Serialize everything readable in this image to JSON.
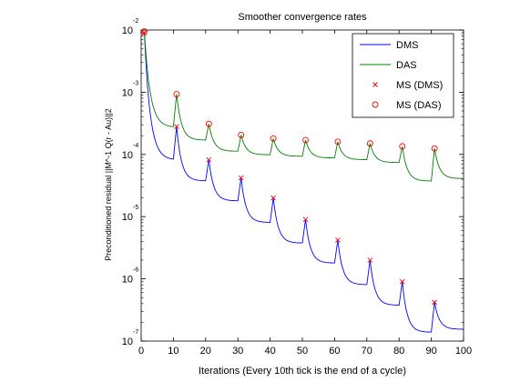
{
  "chart_data": {
    "type": "line",
    "title": "Smoother convergence rates",
    "xlabel": "Iterations (Every 10th tick is the end of a cycle)",
    "ylabel": "Preconditioned residual ||M^-1 Q(r - Au)||2",
    "xlim": [
      0,
      100
    ],
    "ylim": [
      1e-07,
      0.01
    ],
    "yscale": "log",
    "x_ticks": [
      0,
      10,
      20,
      30,
      40,
      50,
      60,
      70,
      80,
      90,
      100
    ],
    "y_ticks": [
      {
        "value": 0.01,
        "base": "10",
        "exp": "-2"
      },
      {
        "value": 0.001,
        "base": "10",
        "exp": "-3"
      },
      {
        "value": 0.0001,
        "base": "10",
        "exp": "-4"
      },
      {
        "value": 1e-05,
        "base": "10",
        "exp": "-5"
      },
      {
        "value": 1e-06,
        "base": "10",
        "exp": "-6"
      },
      {
        "value": 1e-07,
        "base": "10",
        "exp": "-7"
      }
    ],
    "legend": {
      "placement": "top-right",
      "entries": [
        {
          "label": "DMS",
          "style": "line",
          "color": "#0000ff"
        },
        {
          "label": "DAS",
          "style": "line",
          "color": "#008000"
        },
        {
          "label": "MS (DMS)",
          "style": "x-marker",
          "color": "#ff0000"
        },
        {
          "label": "MS (DAS)",
          "style": "o-marker",
          "color": "#ff0000"
        }
      ]
    },
    "series": [
      {
        "name": "DMS",
        "color": "#0000ff",
        "cycle_starts": [
          {
            "x": 1,
            "y": 0.009
          },
          {
            "x": 11,
            "y": 0.00028
          },
          {
            "x": 21,
            "y": 8.2e-05
          },
          {
            "x": 31,
            "y": 4.2e-05
          },
          {
            "x": 41,
            "y": 2e-05
          },
          {
            "x": 51,
            "y": 9e-06
          },
          {
            "x": 61,
            "y": 4.2e-06
          },
          {
            "x": 71,
            "y": 2e-06
          },
          {
            "x": 81,
            "y": 9e-07
          },
          {
            "x": 91,
            "y": 4.2e-07
          }
        ],
        "end_value": {
          "x": 100,
          "y": 1.55e-07
        }
      },
      {
        "name": "DAS",
        "color": "#008000",
        "cycle_starts": [
          {
            "x": 1,
            "y": 0.0095
          },
          {
            "x": 11,
            "y": 0.00093
          },
          {
            "x": 21,
            "y": 0.00031
          },
          {
            "x": 31,
            "y": 0.000205
          },
          {
            "x": 41,
            "y": 0.00018
          },
          {
            "x": 51,
            "y": 0.00017
          },
          {
            "x": 61,
            "y": 0.00016
          },
          {
            "x": 71,
            "y": 0.00015
          },
          {
            "x": 81,
            "y": 0.000135
          },
          {
            "x": 91,
            "y": 0.000125
          }
        ],
        "end_value": {
          "x": 100,
          "y": 4.1e-05
        }
      }
    ],
    "markers": [
      {
        "name": "MS (DMS)",
        "symbol": "x",
        "color": "#ff0000",
        "points": [
          {
            "x": 1,
            "y": 0.009
          },
          {
            "x": 11,
            "y": 0.00028
          },
          {
            "x": 21,
            "y": 8.2e-05
          },
          {
            "x": 31,
            "y": 4.2e-05
          },
          {
            "x": 41,
            "y": 2e-05
          },
          {
            "x": 51,
            "y": 9e-06
          },
          {
            "x": 61,
            "y": 4.2e-06
          },
          {
            "x": 71,
            "y": 2e-06
          },
          {
            "x": 81,
            "y": 9e-07
          },
          {
            "x": 91,
            "y": 4.2e-07
          }
        ]
      },
      {
        "name": "MS (DAS)",
        "symbol": "o",
        "color": "#ff0000",
        "points": [
          {
            "x": 1,
            "y": 0.0095
          },
          {
            "x": 11,
            "y": 0.00093
          },
          {
            "x": 21,
            "y": 0.00031
          },
          {
            "x": 31,
            "y": 0.000205
          },
          {
            "x": 41,
            "y": 0.00018
          },
          {
            "x": 51,
            "y": 0.00017
          },
          {
            "x": 61,
            "y": 0.00016
          },
          {
            "x": 71,
            "y": 0.00015
          },
          {
            "x": 81,
            "y": 0.000135
          },
          {
            "x": 91,
            "y": 0.000125
          }
        ]
      }
    ]
  }
}
